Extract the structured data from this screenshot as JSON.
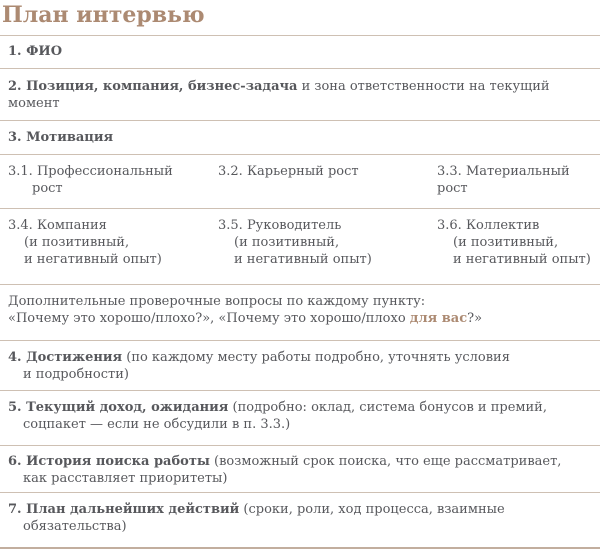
{
  "title": "План интервью",
  "colors": {
    "accent": "#ac8a72",
    "text": "#57585c",
    "separator_line": "#cec0b3",
    "bottom_line": "#c2ae9e"
  },
  "rows": {
    "r1": {
      "bold": "1. ФИО"
    },
    "r2": {
      "bold": "2. Позиция, компания, бизнес-задача",
      "rest": " и зона ответственности на текущий момент"
    },
    "r3": {
      "bold": "3. Мотивация"
    },
    "r31": {
      "c1l1": "3.1. Профессиональный",
      "c1l2": "рост",
      "c2": "3.2. Карьерный рост",
      "c3": "3.3. Материальный рост"
    },
    "r34": {
      "c1l1": "3.4. Компания",
      "c1l2": "(и позитивный,",
      "c1l3": "и негативный опыт)",
      "c2l1": "3.5. Руководитель",
      "c2l2": "(и позитивный,",
      "c2l3": "и негативный опыт)",
      "c3l1": "3.6. Коллектив",
      "c3l2": "(и позитивный,",
      "c3l3": "и негативный опыт)"
    },
    "note": {
      "line1": "Дополнительные проверочные вопросы по каждому пункту:",
      "line2_pre": "«Почему это хорошо/плохо?», «Почему это хорошо/плохо ",
      "line2_accent": "для вас",
      "line2_post": "?»"
    },
    "r4": {
      "bold": "4. Достижения",
      "rest1": " (по каждому месту работы подробно, уточнять условия",
      "rest2": "и подробности)"
    },
    "r5": {
      "bold": "5. Текущий доход, ожидания",
      "rest1": " (подробно: оклад, система бонусов и премий,",
      "rest2": "соцпакет — если не обсудили в п. 3.3.)"
    },
    "r6": {
      "bold": "6. История поиска работы",
      "rest1": " (возможный срок поиска, что еще рассматривает,",
      "rest2": "как расставляет приоритеты)"
    },
    "r7": {
      "bold": "7. План дальнейших действий",
      "rest1": " (сроки, роли, ход процесса, взаимные",
      "rest2": "обязательства)"
    }
  }
}
